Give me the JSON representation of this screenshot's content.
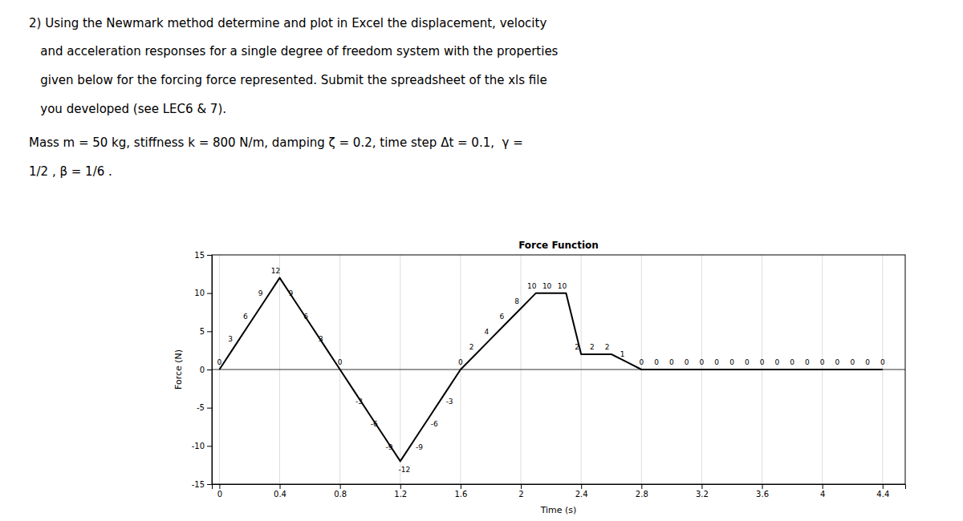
{
  "chart_data": {
    "type": "line",
    "title": "Force Function",
    "xlabel": "Time (s)",
    "ylabel": "Force (N)",
    "annotations": [
      "2) Using the Newmark method determine and plot in Excel the displacement, velocity",
      "   and acceleration responses for a single degree of freedom system with the properties",
      "   given below for the forcing force represented. Submit the spreadsheet of the xls file",
      "   you developed (see LEC6 & 7).",
      "Mass m = 50 kg, stiffness k = 800 N/m, damping ζ = 0.2, time step Δt = 0.1,  γ =",
      "1/2 , β = 1/6 ."
    ],
    "x": [
      0.0,
      0.1,
      0.2,
      0.3,
      0.4,
      0.5,
      0.6,
      0.7,
      0.8,
      0.9,
      1.0,
      1.1,
      1.2,
      1.3,
      1.4,
      1.5,
      1.6,
      1.7,
      1.8,
      1.9,
      2.0,
      2.1,
      2.2,
      2.3,
      2.4,
      2.5,
      2.6,
      2.7,
      2.8,
      2.9,
      3.0,
      3.1,
      3.2,
      3.3,
      3.4,
      3.5,
      3.6,
      3.7,
      3.8,
      3.9,
      4.0,
      4.1,
      4.2,
      4.3,
      4.4
    ],
    "values": [
      0,
      3,
      6,
      9,
      12,
      9,
      6,
      3,
      0,
      -3,
      -6,
      -9,
      -12,
      -9,
      -6,
      -3,
      0,
      2,
      4,
      6,
      8,
      10,
      10,
      10,
      2,
      2,
      2,
      1,
      0,
      0,
      0,
      0,
      0,
      0,
      0,
      0,
      0,
      0,
      0,
      0,
      0,
      0,
      0,
      0,
      0
    ],
    "color": "black",
    "xlim": [
      -0.05,
      4.55
    ],
    "ylim": [
      -15,
      15
    ],
    "xticks": [
      0,
      0.4,
      0.8,
      1.2,
      1.6,
      2,
      2.4,
      2.8,
      3.2,
      3.6,
      4,
      4.4
    ],
    "yticks": [
      -15,
      -10,
      -5,
      0,
      5,
      10,
      15
    ],
    "grid": true,
    "data_labels": true
  }
}
